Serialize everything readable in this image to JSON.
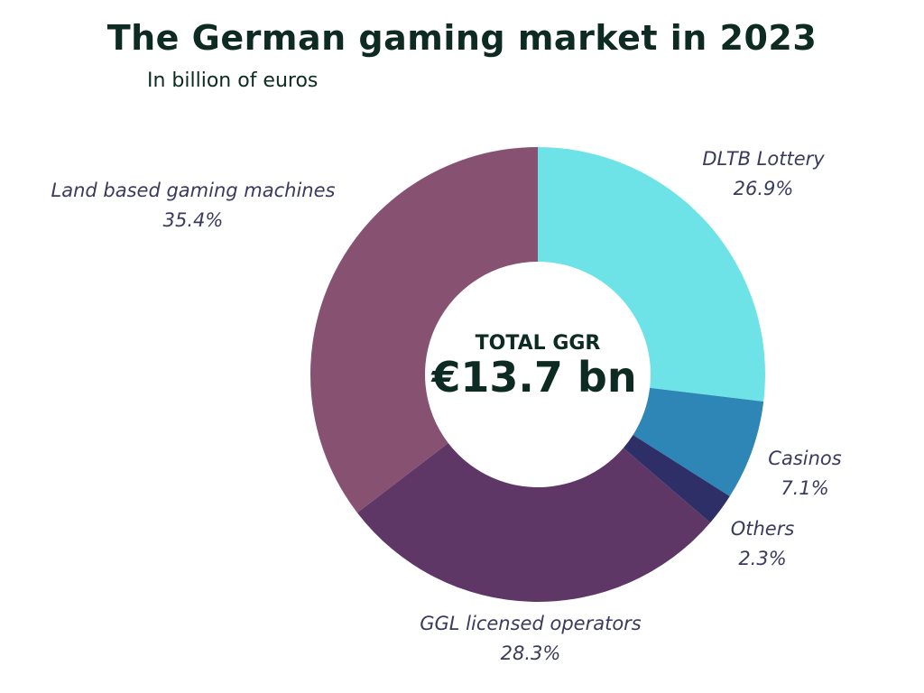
{
  "chart_data": {
    "type": "donut",
    "title": "The German gaming market in 2023",
    "subtitle": "In billion of euros",
    "center": {
      "label": "TOTAL GGR",
      "total": "€13.7 bn"
    },
    "slices": [
      {
        "name": "DLTB Lottery",
        "value": 26.9,
        "value_label": "26.9%",
        "color": "#6de3e7"
      },
      {
        "name": "Casinos",
        "value": 7.1,
        "value_label": "7.1%",
        "color": "#2e86b7"
      },
      {
        "name": "Others",
        "value": 2.3,
        "value_label": "2.3%",
        "color": "#2f2f68"
      },
      {
        "name": "GGL licensed operators",
        "value": 28.3,
        "value_label": "28.3%",
        "color": "#5e3766"
      },
      {
        "name": "Land based gaming machines",
        "value": 35.4,
        "value_label": "35.4%",
        "color": "#875272"
      }
    ]
  }
}
